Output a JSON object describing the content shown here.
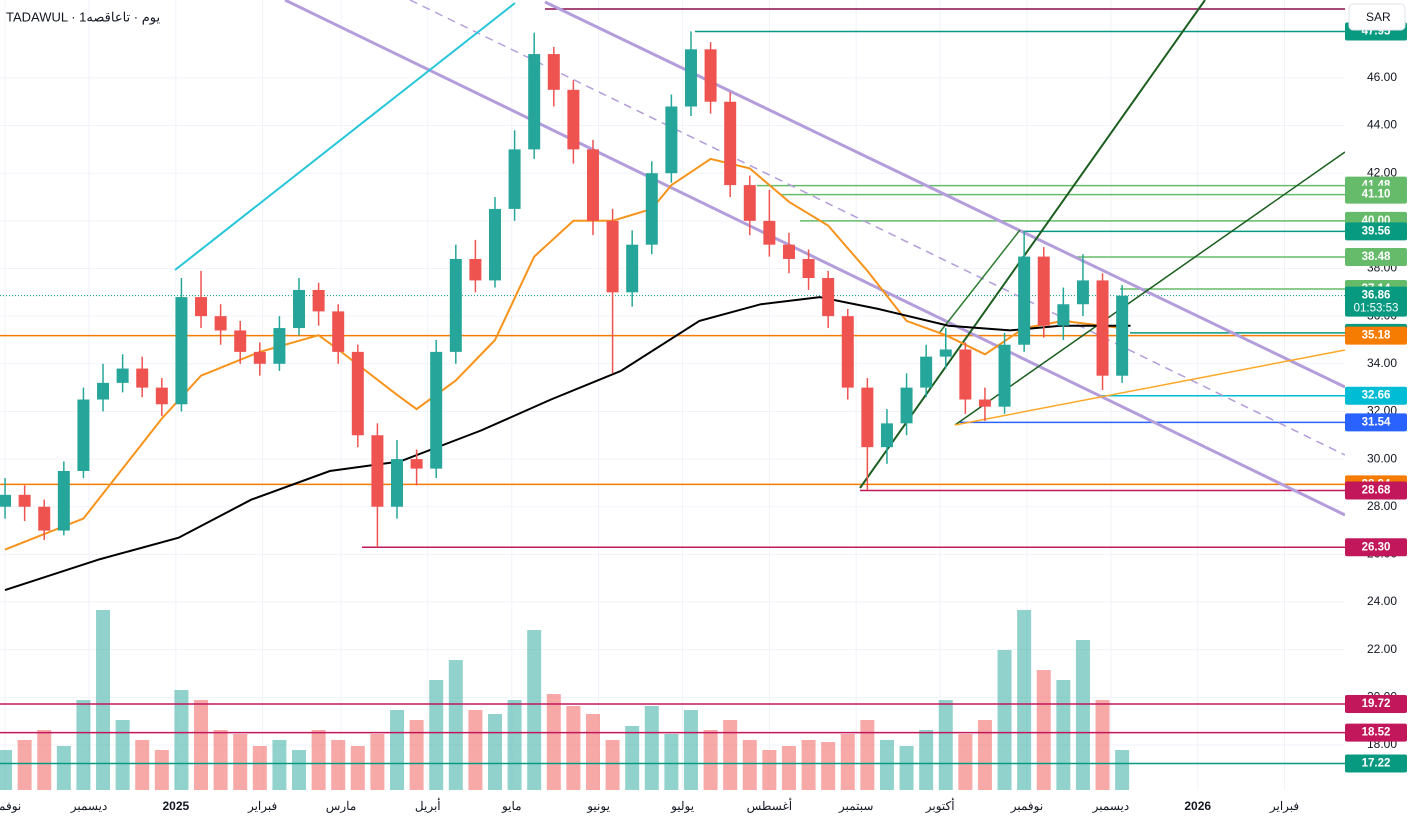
{
  "chart_data": {
    "type": "candlestick",
    "title": "TADAWUL · 1يوم · تاعاقصه",
    "currency": "SAR",
    "xlim": [
      -1.8,
      478.6
    ],
    "xticks": [
      {
        "value": 0,
        "label": "نوفمبر"
      },
      {
        "value": 30,
        "label": "ديسمبر"
      },
      {
        "value": 61,
        "label": "2025"
      },
      {
        "value": 92,
        "label": "فبراير"
      },
      {
        "value": 120,
        "label": "مارس"
      },
      {
        "value": 151,
        "label": "أبريل"
      },
      {
        "value": 181,
        "label": "مايو"
      },
      {
        "value": 212,
        "label": "يونيو"
      },
      {
        "value": 242,
        "label": "يوليو"
      },
      {
        "value": 273,
        "label": "أغسطس"
      },
      {
        "value": 304,
        "label": "سبتمبر"
      },
      {
        "value": 334,
        "label": "أكتوبر"
      },
      {
        "value": 365,
        "label": "نوفمبر"
      },
      {
        "value": 395,
        "label": "ديسمبر"
      },
      {
        "value": 426,
        "label": "2026"
      },
      {
        "value": 457,
        "label": "فبراير"
      }
    ],
    "ylim": [
      16.11,
      49.27
    ],
    "yticks": [
      {
        "value": 18,
        "label": "18.00"
      },
      {
        "value": 20,
        "label": "20.00"
      },
      {
        "value": 22,
        "label": "22.00"
      },
      {
        "value": 24,
        "label": "24.00"
      },
      {
        "value": 26,
        "label": "26.00"
      },
      {
        "value": 28,
        "label": "28.00"
      },
      {
        "value": 30,
        "label": "30.00"
      },
      {
        "value": 32,
        "label": "32.00"
      },
      {
        "value": 34,
        "label": "34.00"
      },
      {
        "value": 36,
        "label": "36.00"
      },
      {
        "value": 38,
        "label": "38.00"
      },
      {
        "value": 40,
        "label": "40.00"
      },
      {
        "value": 42,
        "label": "42.00"
      },
      {
        "value": 44,
        "label": "44.00"
      },
      {
        "value": 46,
        "label": "46.00"
      }
    ],
    "grid": true,
    "up_color": "#26a69a",
    "down_color": "#ef5350",
    "candles": {
      "x": [
        0,
        7,
        14,
        21,
        28,
        35,
        42,
        49,
        56,
        63,
        70,
        77,
        84,
        91,
        98,
        105,
        112,
        119,
        126,
        133,
        140,
        147,
        154,
        161,
        168,
        175,
        182,
        189,
        196,
        203,
        210,
        217,
        224,
        231,
        238,
        245,
        252,
        259,
        266,
        273,
        280,
        287,
        294,
        301,
        308,
        315,
        322,
        329,
        336,
        343,
        350,
        357,
        364,
        371,
        378,
        385,
        392,
        399
      ],
      "open": [
        28.0,
        28.5,
        28.0,
        27.0,
        29.5,
        32.5,
        33.2,
        33.8,
        33.0,
        32.3,
        36.8,
        36.0,
        35.4,
        34.5,
        34.0,
        35.5,
        37.1,
        36.2,
        34.5,
        31.0,
        28.0,
        30.0,
        29.6,
        34.5,
        38.4,
        37.5,
        40.5,
        43.0,
        47.0,
        45.5,
        43.0,
        40.0,
        37.0,
        39.0,
        42.0,
        44.8,
        47.2,
        45.0,
        41.5,
        40.0,
        39.0,
        38.4,
        37.6,
        36.0,
        33.0,
        30.5,
        31.5,
        33.0,
        34.3,
        34.6,
        32.5,
        32.2,
        34.8,
        38.5,
        35.6,
        36.5,
        37.5,
        33.5
      ],
      "high": [
        29.2,
        28.9,
        28.3,
        29.9,
        33.0,
        34.0,
        34.4,
        34.3,
        33.4,
        37.6,
        37.9,
        36.5,
        35.8,
        34.9,
        36.0,
        37.6,
        37.4,
        36.5,
        34.8,
        31.5,
        30.8,
        30.4,
        35.0,
        39.0,
        39.2,
        41.0,
        43.8,
        47.9,
        47.3,
        45.9,
        43.4,
        40.5,
        39.6,
        42.5,
        45.3,
        47.95,
        47.5,
        45.4,
        41.9,
        41.3,
        39.5,
        38.8,
        37.9,
        36.3,
        33.4,
        32.1,
        33.6,
        34.8,
        35.5,
        34.9,
        33.0,
        35.3,
        39.6,
        38.9,
        37.2,
        38.6,
        37.8,
        37.3
      ],
      "low": [
        27.5,
        27.4,
        26.6,
        26.8,
        29.2,
        32.0,
        32.8,
        32.6,
        31.8,
        32.0,
        35.5,
        34.8,
        34.0,
        33.5,
        33.7,
        35.2,
        35.6,
        34.0,
        30.5,
        26.3,
        27.5,
        28.9,
        29.2,
        34.0,
        37.0,
        37.2,
        40.0,
        42.6,
        44.8,
        42.4,
        39.4,
        33.6,
        36.4,
        38.6,
        41.6,
        44.4,
        44.5,
        41.0,
        39.4,
        38.5,
        37.8,
        37.1,
        35.5,
        32.5,
        28.7,
        29.8,
        31.0,
        32.6,
        33.8,
        31.9,
        31.6,
        31.9,
        34.5,
        35.1,
        35.0,
        36.0,
        32.9,
        33.2
      ],
      "close": [
        28.5,
        28.0,
        27.0,
        29.5,
        32.5,
        33.2,
        33.8,
        33.0,
        32.3,
        36.8,
        36.0,
        35.4,
        34.5,
        34.0,
        35.5,
        37.1,
        36.2,
        34.5,
        31.0,
        28.0,
        30.0,
        29.6,
        34.5,
        38.4,
        37.5,
        40.5,
        43.0,
        47.0,
        45.5,
        43.0,
        40.0,
        37.0,
        39.0,
        42.0,
        44.8,
        47.2,
        45.0,
        41.5,
        40.0,
        39.0,
        38.4,
        37.6,
        36.0,
        33.0,
        30.5,
        31.5,
        33.0,
        34.3,
        34.6,
        32.5,
        32.2,
        34.8,
        38.5,
        35.6,
        36.5,
        37.5,
        33.5,
        36.86
      ],
      "volume": [
        20,
        25,
        30,
        22,
        45,
        90,
        35,
        25,
        20,
        50,
        45,
        30,
        28,
        22,
        25,
        20,
        30,
        25,
        22,
        28,
        40,
        35,
        55,
        65,
        40,
        38,
        45,
        80,
        48,
        42,
        38,
        25,
        32,
        42,
        28,
        40,
        30,
        35,
        25,
        20,
        22,
        25,
        24,
        28,
        35,
        25,
        22,
        30,
        45,
        28,
        35,
        70,
        90,
        60,
        55,
        75,
        45,
        20
      ]
    },
    "moving_averages": [
      {
        "color": "#f7931a",
        "x": [
          0,
          28,
          56,
          70,
          91,
          112,
          119,
          140,
          147,
          161,
          175,
          189,
          203,
          217,
          231,
          238,
          252,
          266,
          280,
          294,
          308,
          322,
          336,
          350,
          364,
          378,
          392,
          399
        ],
        "values": [
          26.2,
          27.5,
          31.7,
          33.5,
          34.5,
          35.2,
          34.6,
          32.7,
          32.1,
          33.3,
          35.0,
          38.5,
          40.0,
          40.0,
          40.5,
          41.5,
          42.6,
          42.2,
          40.8,
          39.8,
          37.9,
          35.8,
          35.2,
          34.4,
          35.5,
          35.8,
          35.6,
          35.5
        ]
      },
      {
        "color": "#000000",
        "x": [
          0,
          34,
          62,
          88,
          116,
          141,
          170,
          195,
          220,
          248,
          270,
          291,
          312,
          337,
          359,
          377,
          402
        ],
        "values": [
          24.5,
          25.8,
          26.7,
          28.3,
          29.5,
          29.9,
          31.2,
          32.5,
          33.7,
          35.8,
          36.5,
          36.8,
          36.3,
          35.6,
          35.4,
          35.6,
          35.6
        ]
      }
    ],
    "levels": [
      {
        "value": 47.95,
        "color": "#089981"
      },
      {
        "value": 41.48,
        "color": "#66bb6a"
      },
      {
        "value": 41.1,
        "label": "41.10",
        "color": "#66bb6a"
      },
      {
        "value": 40,
        "label": "40.00",
        "color": "#66bb6a"
      },
      {
        "value": 39.56,
        "color": "#089981"
      },
      {
        "value": 38.48,
        "color": "#66bb6a"
      },
      {
        "value": 37.14,
        "color": "#66bb6a"
      },
      {
        "value": 36.86,
        "color": "#089981",
        "countdown": "01:53:53"
      },
      {
        "value": 35.3,
        "label": "35.30",
        "color": "#089981"
      },
      {
        "value": 35.18,
        "color": "#f57c00"
      },
      {
        "value": 32.66,
        "color": "#00bcd4"
      },
      {
        "value": 31.54,
        "color": "#2962ff"
      },
      {
        "value": 28.94,
        "color": "#f57c00"
      },
      {
        "value": 28.68,
        "color": "#c2185b"
      },
      {
        "value": 26.3,
        "label": "26.30",
        "color": "#c2185b"
      },
      {
        "value": 19.72,
        "color": "#c2185b"
      },
      {
        "value": 18.52,
        "color": "#c2185b"
      },
      {
        "value": 17.22,
        "color": "#089981"
      }
    ]
  }
}
